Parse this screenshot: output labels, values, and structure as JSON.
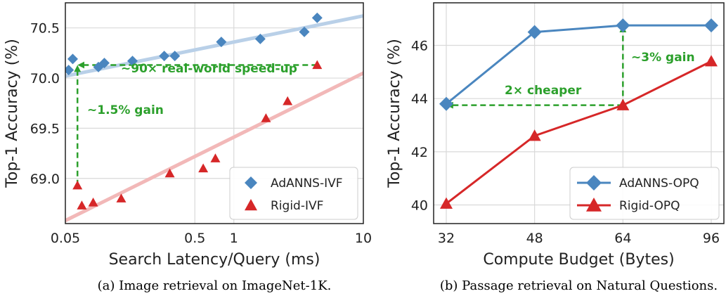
{
  "chart_data": [
    {
      "type": "scatter",
      "caption": "(a) Image retrieval on ImageNet-1K.",
      "xlabel": "Search Latency/Query (ms)",
      "ylabel": "Top-1 Accuracy (%)",
      "xscale": "log",
      "xlim": [
        0.05,
        10
      ],
      "ylim": [
        68.55,
        70.75
      ],
      "xticks": [
        0.05,
        0.5,
        1,
        10
      ],
      "xtick_labels": [
        "0.05",
        "0.5",
        "1",
        "10"
      ],
      "yticks": [
        69.0,
        69.5,
        70.0,
        70.5
      ],
      "ytick_labels": [
        "69.0",
        "69.5",
        "70.0",
        "70.5"
      ],
      "grid": true,
      "legend_position": "bottom-right",
      "series": [
        {
          "name": "AdANNS-IVF",
          "marker": "diamond",
          "color": "#4a86bf",
          "trend_color": "#b9d0e8",
          "trend": [
            [
              0.05,
              70.02
            ],
            [
              10,
              70.62
            ]
          ],
          "points": [
            [
              0.053,
              70.08
            ],
            [
              0.057,
              70.19
            ],
            [
              0.09,
              70.11
            ],
            [
              0.1,
              70.15
            ],
            [
              0.165,
              70.17
            ],
            [
              0.29,
              70.22
            ],
            [
              0.35,
              70.22
            ],
            [
              0.8,
              70.36
            ],
            [
              1.6,
              70.39
            ],
            [
              3.5,
              70.46
            ],
            [
              4.4,
              70.6
            ]
          ]
        },
        {
          "name": "Rigid-IVF",
          "marker": "triangle",
          "color": "#d62728",
          "trend_color": "#f2b8b8",
          "trend": [
            [
              0.05,
              68.58
            ],
            [
              10,
              70.05
            ]
          ],
          "points": [
            [
              0.062,
              68.93
            ],
            [
              0.067,
              68.73
            ],
            [
              0.082,
              68.76
            ],
            [
              0.135,
              68.8
            ],
            [
              0.32,
              69.05
            ],
            [
              0.58,
              69.1
            ],
            [
              0.72,
              69.2
            ],
            [
              1.77,
              69.6
            ],
            [
              2.6,
              69.77
            ],
            [
              4.4,
              70.13
            ]
          ]
        }
      ],
      "annotations": [
        {
          "text": "~90× real-world speed-up",
          "from": [
            4.4,
            70.13
          ],
          "to": [
            0.062,
            70.13
          ]
        },
        {
          "text": "~1.5% gain",
          "from": [
            0.062,
            68.93
          ],
          "to": [
            0.062,
            70.13
          ]
        }
      ]
    },
    {
      "type": "line",
      "caption": "(b) Passage retrieval on Natural Questions.",
      "xlabel": "Compute Budget (Bytes)",
      "ylabel": "Top-1 Accuracy (%)",
      "x": [
        32,
        48,
        64,
        96
      ],
      "xtick_labels": [
        "32",
        "48",
        "64",
        "96"
      ],
      "ylim": [
        39.3,
        47.6
      ],
      "yticks": [
        40,
        42,
        44,
        46
      ],
      "ytick_labels": [
        "40",
        "42",
        "44",
        "46"
      ],
      "grid": true,
      "legend_position": "bottom-right",
      "series": [
        {
          "name": "AdANNS-OPQ",
          "marker": "diamond",
          "color": "#4a86bf",
          "values": [
            43.8,
            46.5,
            46.75,
            46.75
          ]
        },
        {
          "name": "Rigid-OPQ",
          "marker": "triangle",
          "color": "#d62728",
          "values": [
            40.05,
            42.6,
            43.75,
            45.4
          ]
        }
      ],
      "annotations": [
        {
          "text": "2× cheaper",
          "from": [
            64,
            43.75
          ],
          "to": [
            32,
            43.75
          ]
        },
        {
          "text": "~3% gain",
          "from": [
            64,
            43.75
          ],
          "to": [
            64,
            46.75
          ]
        }
      ]
    }
  ],
  "colors": {
    "annotation": "#2ca02c",
    "grid": "#d9d9d9",
    "axes": "#222222"
  }
}
